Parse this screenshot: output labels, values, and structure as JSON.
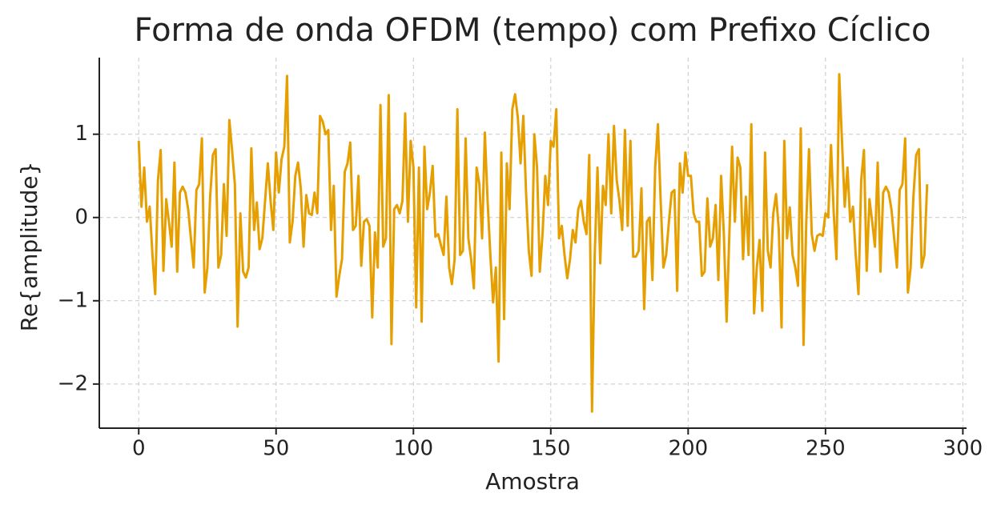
{
  "chart_data": {
    "type": "line",
    "title": "Forma de onda OFDM (tempo) com Prefixo Cíclico",
    "xlabel": "Amostra",
    "ylabel": "Re{amplitude}",
    "xlim": [
      -14.35,
      301.35
    ],
    "ylim": [
      -2.53,
      1.92
    ],
    "xticks": [
      0,
      50,
      100,
      150,
      200,
      250,
      300
    ],
    "yticks": [
      {
        "value": -2,
        "label": "−2"
      },
      {
        "value": -1,
        "label": "−1"
      },
      0,
      1
    ],
    "grid": true,
    "series": [
      {
        "color": "#e69f00",
        "x": [
          0,
          1,
          2,
          3,
          4,
          5,
          6,
          7,
          8,
          9,
          10,
          11,
          12,
          13,
          14,
          15,
          16,
          17,
          18,
          19,
          20,
          21,
          22,
          23,
          24,
          25,
          26,
          27,
          28,
          29,
          30,
          31,
          32,
          33,
          34,
          35,
          36,
          37,
          38,
          39,
          40,
          41,
          42,
          43,
          44,
          45,
          46,
          47,
          48,
          49,
          50,
          51,
          52,
          53,
          54,
          55,
          56,
          57,
          58,
          59,
          60,
          61,
          62,
          63,
          64,
          65,
          66,
          67,
          68,
          69,
          70,
          71,
          72,
          73,
          74,
          75,
          76,
          77,
          78,
          79,
          80,
          81,
          82,
          83,
          84,
          85,
          86,
          87,
          88,
          89,
          90,
          91,
          92,
          93,
          94,
          95,
          96,
          97,
          98,
          99,
          100,
          101,
          102,
          103,
          104,
          105,
          106,
          107,
          108,
          109,
          110,
          111,
          112,
          113,
          114,
          115,
          116,
          117,
          118,
          119,
          120,
          121,
          122,
          123,
          124,
          125,
          126,
          127,
          128,
          129,
          130,
          131,
          132,
          133,
          134,
          135,
          136,
          137,
          138,
          139,
          140,
          141,
          142,
          143,
          144,
          145,
          146,
          147,
          148,
          149,
          150,
          151,
          152,
          153,
          154,
          155,
          156,
          157,
          158,
          159,
          160,
          161,
          162,
          163,
          164,
          165,
          166,
          167,
          168,
          169,
          170,
          171,
          172,
          173,
          174,
          175,
          176,
          177,
          178,
          179,
          180,
          181,
          182,
          183,
          184,
          185,
          186,
          187,
          188,
          189,
          190,
          191,
          192,
          193,
          194,
          195,
          196,
          197,
          198,
          199,
          200,
          201,
          202,
          203,
          204,
          205,
          206,
          207,
          208,
          209,
          210,
          211,
          212,
          213,
          214,
          215,
          216,
          217,
          218,
          219,
          220,
          221,
          222,
          223,
          224,
          225,
          226,
          227,
          228,
          229,
          230,
          231,
          232,
          233,
          234,
          235,
          236,
          237,
          238,
          239,
          240,
          241,
          242,
          243,
          244,
          245,
          246,
          247,
          248,
          249,
          250,
          251,
          252,
          253,
          254,
          255,
          256,
          257,
          258,
          259,
          260,
          261,
          262,
          263,
          264,
          265,
          266,
          267,
          268,
          269,
          270,
          271,
          272,
          273,
          274,
          275,
          276,
          277,
          278,
          279,
          280,
          281,
          282,
          283,
          284,
          285,
          286,
          287
        ],
        "values": [
          0.92,
          0.13,
          0.6,
          -0.05,
          0.13,
          -0.45,
          -0.92,
          0.45,
          0.81,
          -0.64,
          0.22,
          -0.05,
          -0.35,
          0.66,
          -0.65,
          0.3,
          0.37,
          0.3,
          0.1,
          -0.25,
          -0.6,
          0.33,
          0.4,
          0.95,
          -0.9,
          -0.6,
          0.25,
          0.75,
          0.82,
          -0.6,
          -0.45,
          0.4,
          -0.22,
          1.17,
          0.8,
          0.4,
          -1.31,
          0.05,
          -0.65,
          -0.72,
          -0.6,
          0.83,
          -0.15,
          0.18,
          -0.38,
          -0.25,
          0.2,
          0.65,
          0.2,
          -0.15,
          0.78,
          0.3,
          0.7,
          0.85,
          1.7,
          -0.3,
          -0.05,
          0.5,
          0.66,
          0.35,
          -0.35,
          0.27,
          0.05,
          0.03,
          0.3,
          0.05,
          1.22,
          1.15,
          1.0,
          1.05,
          -0.15,
          0.38,
          -0.95,
          -0.7,
          -0.5,
          0.55,
          0.65,
          0.9,
          -0.15,
          -0.1,
          0.5,
          -0.58,
          -0.05,
          -0.02,
          -0.1,
          -1.2,
          -0.18,
          -0.6,
          1.35,
          -0.35,
          -0.25,
          1.47,
          -1.52,
          0.1,
          0.15,
          0.05,
          0.2,
          1.25,
          -0.05,
          0.92,
          0.6,
          -1.08,
          0.6,
          -1.25,
          0.85,
          0.1,
          0.3,
          0.62,
          -0.23,
          -0.2,
          -0.33,
          -0.45,
          0.25,
          -0.6,
          -0.8,
          -0.5,
          1.3,
          -0.45,
          -0.4,
          0.95,
          -0.25,
          -0.5,
          -0.85,
          0.6,
          0.4,
          -0.25,
          1.02,
          0.2,
          -0.45,
          -1.02,
          -0.6,
          -1.73,
          0.78,
          -1.22,
          0.65,
          0.1,
          1.3,
          1.48,
          1.2,
          0.65,
          1.22,
          0.3,
          -0.4,
          -0.7,
          1.0,
          0.6,
          -0.65,
          -0.2,
          0.5,
          0.15,
          0.92,
          0.85,
          1.3,
          -0.25,
          -0.1,
          -0.45,
          -0.73,
          -0.5,
          -0.15,
          -0.3,
          0.1,
          0.2,
          -0.05,
          -0.2,
          0.75,
          -2.33,
          -0.45,
          0.6,
          -0.55,
          0.38,
          0.15,
          1.0,
          0.05,
          1.1,
          0.45,
          0.2,
          -0.15,
          1.05,
          -0.1,
          0.92,
          -0.47,
          -0.47,
          -0.4,
          0.35,
          -1.1,
          -0.05,
          0.0,
          -0.75,
          0.6,
          1.12,
          0.2,
          -0.6,
          -0.45,
          -0.05,
          0.3,
          0.33,
          -0.88,
          0.65,
          0.3,
          0.78,
          0.5,
          0.5,
          0.05,
          -0.05,
          -0.05,
          -0.7,
          -0.65,
          0.23,
          -0.35,
          -0.25,
          0.15,
          -0.75,
          0.5,
          -0.2,
          -1.25,
          -0.2,
          0.85,
          -0.05,
          0.72,
          0.6,
          -0.5,
          0.25,
          -0.45,
          1.12,
          -1.15,
          -0.6,
          -0.27,
          -1.12,
          0.78,
          -0.4,
          -0.6,
          0.05,
          0.28,
          -0.15,
          -1.32,
          0.92,
          -0.25,
          0.12,
          -0.45,
          -0.6,
          -0.82,
          1.07,
          -1.53,
          -0.05,
          0.82,
          -0.2,
          -0.4,
          -0.22,
          -0.2,
          -0.22,
          0.05,
          0.0,
          0.87,
          0.05,
          -0.5,
          1.72,
          0.92,
          0.13,
          0.6,
          -0.05,
          0.13,
          -0.45,
          -0.92,
          0.45,
          0.81,
          -0.64,
          0.22,
          -0.05,
          -0.35,
          0.66,
          -0.65,
          0.3,
          0.37,
          0.3,
          0.1,
          -0.25,
          -0.6,
          0.33,
          0.4,
          0.95,
          -0.9,
          -0.6,
          0.25,
          0.75,
          0.82,
          -0.6,
          -0.45,
          0.4
        ]
      }
    ]
  }
}
